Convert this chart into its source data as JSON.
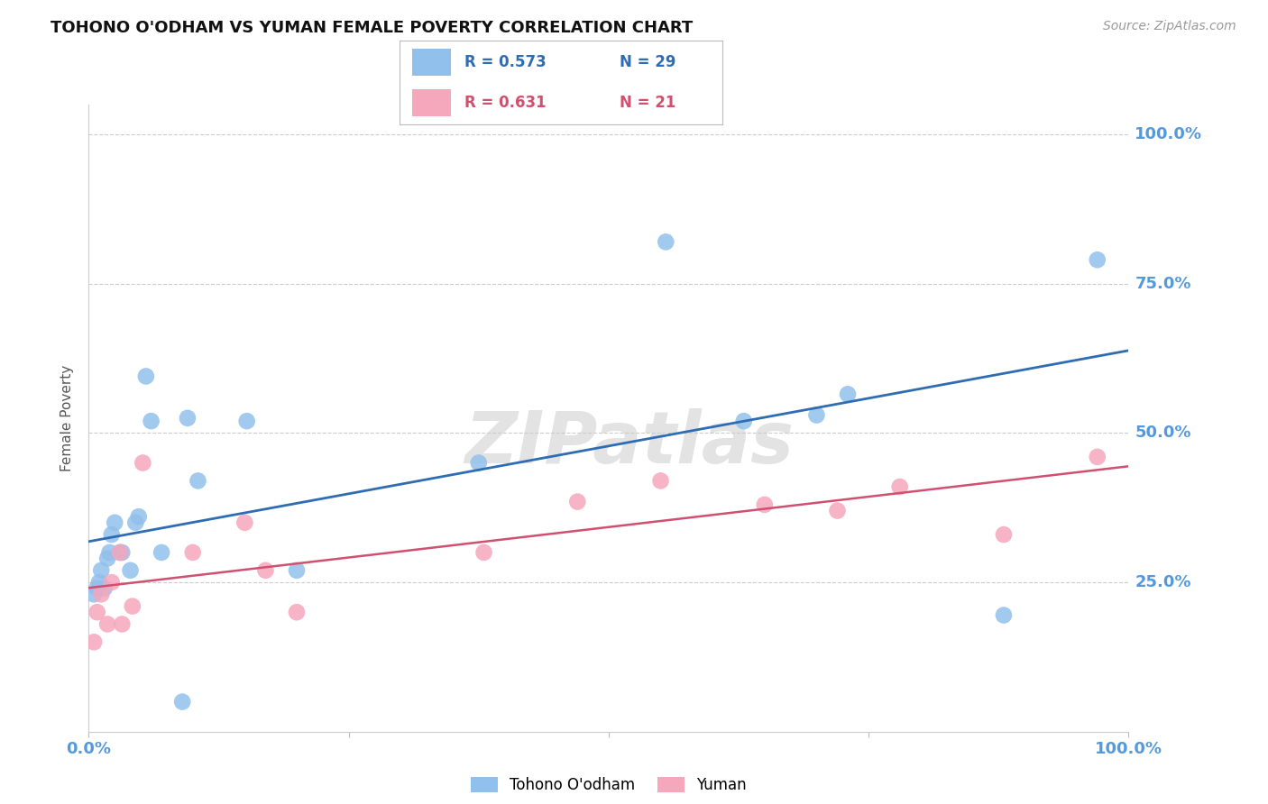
{
  "title": "TOHONO O'ODHAM VS YUMAN FEMALE POVERTY CORRELATION CHART",
  "source": "Source: ZipAtlas.com",
  "ylabel": "Female Poverty",
  "ytick_vals": [
    0.25,
    0.5,
    0.75,
    1.0
  ],
  "ytick_labels": [
    "25.0%",
    "50.0%",
    "75.0%",
    "100.0%"
  ],
  "xlim": [
    0.0,
    1.0
  ],
  "ylim": [
    0.0,
    1.05
  ],
  "watermark": "ZIPatlas",
  "blue_label": "Tohono O'odham",
  "pink_label": "Yuman",
  "blue_R": "R = 0.573",
  "blue_N": "N = 29",
  "pink_R": "R = 0.631",
  "pink_N": "N = 21",
  "blue_color": "#92C0EC",
  "blue_line_color": "#2E6DB4",
  "pink_color": "#F5A7BC",
  "pink_line_color": "#D05070",
  "blue_x": [
    0.005,
    0.008,
    0.01,
    0.012,
    0.015,
    0.018,
    0.02,
    0.022,
    0.025,
    0.03,
    0.032,
    0.04,
    0.045,
    0.048,
    0.055,
    0.06,
    0.07,
    0.09,
    0.095,
    0.105,
    0.152,
    0.2,
    0.375,
    0.555,
    0.63,
    0.7,
    0.73,
    0.88,
    0.97
  ],
  "blue_y": [
    0.23,
    0.24,
    0.25,
    0.27,
    0.24,
    0.29,
    0.3,
    0.33,
    0.35,
    0.3,
    0.3,
    0.27,
    0.35,
    0.36,
    0.595,
    0.52,
    0.3,
    0.05,
    0.525,
    0.42,
    0.52,
    0.27,
    0.45,
    0.82,
    0.52,
    0.53,
    0.565,
    0.195,
    0.79
  ],
  "pink_x": [
    0.005,
    0.008,
    0.012,
    0.018,
    0.022,
    0.03,
    0.032,
    0.042,
    0.052,
    0.1,
    0.15,
    0.17,
    0.2,
    0.38,
    0.47,
    0.55,
    0.65,
    0.72,
    0.78,
    0.88,
    0.97
  ],
  "pink_y": [
    0.15,
    0.2,
    0.23,
    0.18,
    0.25,
    0.3,
    0.18,
    0.21,
    0.45,
    0.3,
    0.35,
    0.27,
    0.2,
    0.3,
    0.385,
    0.42,
    0.38,
    0.37,
    0.41,
    0.33,
    0.46
  ],
  "background_color": "#FFFFFF",
  "grid_color": "#CCCCCC",
  "axis_tick_color": "#5599DD",
  "title_color": "#111111",
  "source_color": "#999999"
}
